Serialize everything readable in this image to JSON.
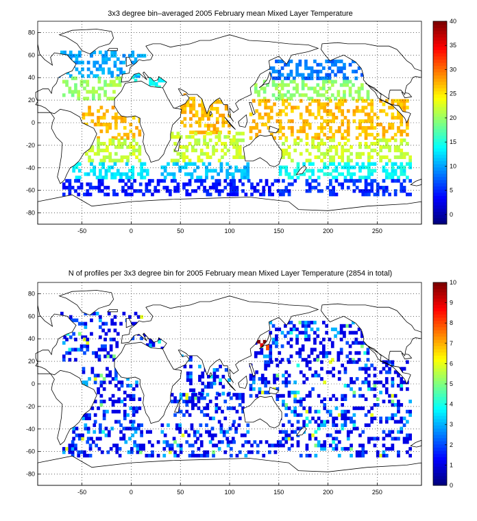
{
  "chart_data": [
    {
      "type": "heatmap",
      "title": "3x3 degree bin–averaged 2005 February mean Mixed Layer Temperature",
      "xlim": [
        -95,
        295
      ],
      "ylim": [
        -90,
        90
      ],
      "xticks": [
        -50,
        0,
        50,
        100,
        150,
        200,
        250
      ],
      "yticks": [
        -80,
        -60,
        -40,
        -20,
        0,
        20,
        40,
        60,
        80
      ],
      "grid": true,
      "colorbar": {
        "min": -2,
        "max": 40,
        "ticks": [
          0,
          5,
          10,
          15,
          20,
          25,
          30,
          35,
          40
        ],
        "colormap": "jet"
      },
      "bin_size_deg": 3,
      "bands": [
        {
          "lat_range": [
            40,
            62
          ],
          "lon_range": [
            -75,
            15
          ],
          "value": 10
        },
        {
          "lat_range": [
            20,
            40
          ],
          "lon_range": [
            -70,
            -10
          ],
          "value": 20
        },
        {
          "lat_range": [
            -15,
            15
          ],
          "lon_range": [
            -50,
            10
          ],
          "value": 27
        },
        {
          "lat_range": [
            -35,
            -15
          ],
          "lon_range": [
            -50,
            10
          ],
          "value": 22
        },
        {
          "lat_range": [
            -50,
            -35
          ],
          "lon_range": [
            -60,
            20
          ],
          "value": 13
        },
        {
          "lat_range": [
            -65,
            -50
          ],
          "lon_range": [
            -70,
            40
          ],
          "value": 4
        },
        {
          "lat_range": [
            30,
            45
          ],
          "lon_range": [
            0,
            35
          ],
          "value": 14
        },
        {
          "lat_range": [
            -10,
            25
          ],
          "lon_range": [
            50,
            100
          ],
          "value": 27
        },
        {
          "lat_range": [
            -35,
            -10
          ],
          "lon_range": [
            40,
            115
          ],
          "value": 22
        },
        {
          "lat_range": [
            -50,
            -35
          ],
          "lon_range": [
            30,
            120
          ],
          "value": 11
        },
        {
          "lat_range": [
            -65,
            -50
          ],
          "lon_range": [
            40,
            150
          ],
          "value": 4
        },
        {
          "lat_range": [
            38,
            55
          ],
          "lon_range": [
            140,
            235
          ],
          "value": 8
        },
        {
          "lat_range": [
            20,
            38
          ],
          "lon_range": [
            125,
            240
          ],
          "value": 20
        },
        {
          "lat_range": [
            -15,
            20
          ],
          "lon_range": [
            120,
            280
          ],
          "value": 27
        },
        {
          "lat_range": [
            -35,
            -15
          ],
          "lon_range": [
            150,
            285
          ],
          "value": 22
        },
        {
          "lat_range": [
            -50,
            -35
          ],
          "lon_range": [
            150,
            285
          ],
          "value": 14
        },
        {
          "lat_range": [
            -65,
            -50
          ],
          "lon_range": [
            150,
            285
          ],
          "value": 5
        }
      ]
    },
    {
      "type": "heatmap",
      "title": "N of profiles per 3x3 degree bin for 2005 February mean Mixed Layer Temperature  (2854 in total)",
      "xlim": [
        -95,
        295
      ],
      "ylim": [
        -90,
        90
      ],
      "xticks": [
        -50,
        0,
        50,
        100,
        150,
        200,
        250
      ],
      "yticks": [
        -80,
        -60,
        -40,
        -20,
        0,
        20,
        40,
        60,
        80
      ],
      "grid": true,
      "colorbar": {
        "min": 0,
        "max": 10,
        "ticks": [
          0,
          1,
          2,
          3,
          4,
          5,
          6,
          7,
          8,
          9,
          10
        ],
        "colormap": "jet"
      },
      "bin_size_deg": 3,
      "total_profiles": 2854,
      "typical_count": 1,
      "max_count_region": {
        "lat_range": [
          30,
          42
        ],
        "lon_range": [
          125,
          145
        ],
        "value": 10
      }
    }
  ]
}
